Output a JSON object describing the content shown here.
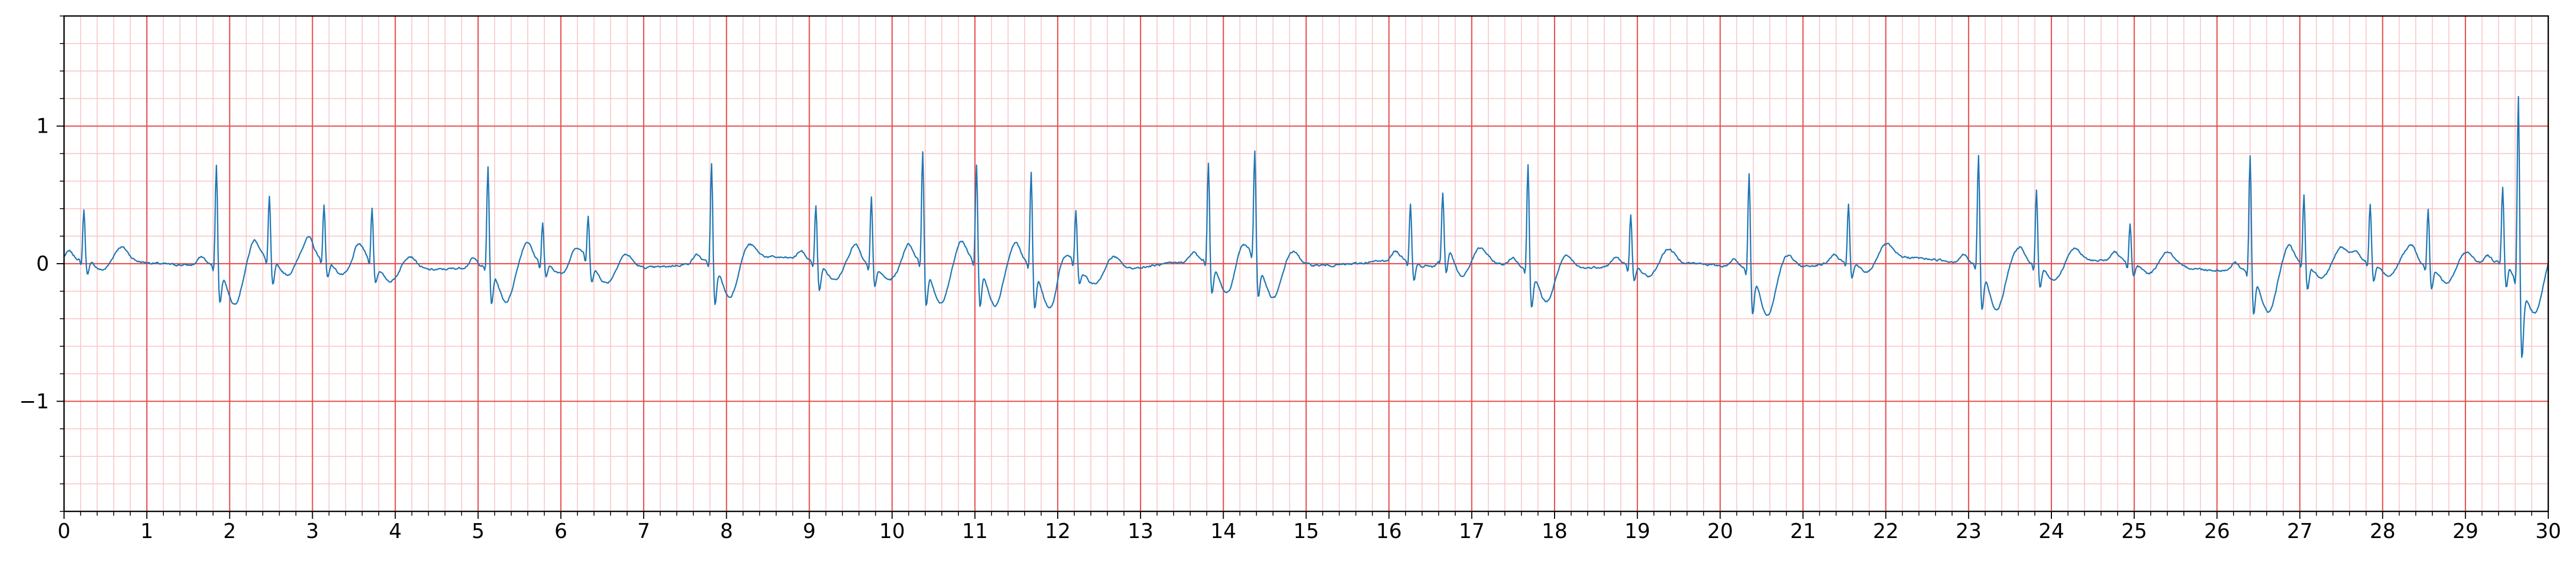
{
  "chart_data": {
    "type": "line",
    "title": "",
    "xlabel": "",
    "ylabel": "",
    "xlim": [
      0,
      30
    ],
    "ylim": [
      -1.8,
      1.8
    ],
    "x_ticks": [
      "0",
      "1",
      "2",
      "3",
      "4",
      "5",
      "6",
      "7",
      "8",
      "9",
      "10",
      "11",
      "12",
      "13",
      "14",
      "15",
      "16",
      "17",
      "18",
      "19",
      "20",
      "21",
      "22",
      "23",
      "24",
      "25",
      "26",
      "27",
      "28",
      "29",
      "30"
    ],
    "y_ticks": [
      "−1",
      "0",
      "1"
    ],
    "y_tick_values": [
      -1,
      0,
      1
    ],
    "grid": {
      "major": true,
      "minor": true,
      "major_x_step": 1,
      "minor_x_step": 0.2,
      "major_y_step": 1,
      "minor_y_step": 0.2
    },
    "colors": {
      "major_grid": "#e84a4a",
      "minor_grid": "#f8c3c3",
      "trace": "#1f77b4"
    },
    "series": [
      {
        "color": "#1f77b4",
        "beats": [
          {
            "t": 0.24,
            "r": 0.38,
            "s": -0.1,
            "st": -0.08
          },
          {
            "t": 1.84,
            "r": 0.77,
            "s": -0.25,
            "st": -0.3
          },
          {
            "t": 2.48,
            "r": 0.48,
            "s": -0.18,
            "st": -0.12
          },
          {
            "t": 3.14,
            "r": 0.42,
            "s": -0.12,
            "st": -0.1
          },
          {
            "t": 3.72,
            "r": 0.41,
            "s": -0.12,
            "st": -0.1
          },
          {
            "t": 5.12,
            "r": 0.77,
            "s": -0.26,
            "st": -0.28
          },
          {
            "t": 5.78,
            "r": 0.3,
            "s": -0.1,
            "st": -0.08
          },
          {
            "t": 6.33,
            "r": 0.33,
            "s": -0.12,
            "st": -0.12
          },
          {
            "t": 7.82,
            "r": 0.76,
            "s": -0.3,
            "st": -0.28
          },
          {
            "t": 9.08,
            "r": 0.44,
            "s": -0.2,
            "st": -0.12
          },
          {
            "t": 9.75,
            "r": 0.52,
            "s": -0.14,
            "st": -0.1
          },
          {
            "t": 10.37,
            "r": 0.86,
            "s": -0.28,
            "st": -0.3
          },
          {
            "t": 11.02,
            "r": 0.75,
            "s": -0.3,
            "st": -0.32
          },
          {
            "t": 11.68,
            "r": 0.72,
            "s": -0.28,
            "st": -0.3
          },
          {
            "t": 12.22,
            "r": 0.4,
            "s": -0.12,
            "st": -0.1
          },
          {
            "t": 13.82,
            "r": 0.75,
            "s": -0.22,
            "st": -0.24
          },
          {
            "t": 14.38,
            "r": 0.81,
            "s": -0.25,
            "st": -0.26
          },
          {
            "t": 16.26,
            "r": 0.43,
            "s": -0.15,
            "st": -0.12
          },
          {
            "t": 16.65,
            "r": 0.45,
            "s": -0.18,
            "st": -0.14
          },
          {
            "t": 17.68,
            "r": 0.8,
            "s": -0.26,
            "st": -0.24
          },
          {
            "t": 18.92,
            "r": 0.38,
            "s": -0.12,
            "st": -0.1
          },
          {
            "t": 20.35,
            "r": 0.75,
            "s": -0.3,
            "st": -0.34
          },
          {
            "t": 21.55,
            "r": 0.43,
            "s": -0.12,
            "st": -0.1
          },
          {
            "t": 23.12,
            "r": 0.85,
            "s": -0.3,
            "st": -0.32
          },
          {
            "t": 23.82,
            "r": 0.57,
            "s": -0.15,
            "st": -0.12
          },
          {
            "t": 24.95,
            "r": 0.3,
            "s": -0.1,
            "st": -0.08
          },
          {
            "t": 26.4,
            "r": 0.88,
            "s": -0.3,
            "st": -0.32
          },
          {
            "t": 27.05,
            "r": 0.53,
            "s": -0.18,
            "st": -0.12
          },
          {
            "t": 27.85,
            "r": 0.44,
            "s": -0.14,
            "st": -0.1
          },
          {
            "t": 28.55,
            "r": 0.44,
            "s": -0.16,
            "st": -0.12
          },
          {
            "t": 29.45,
            "r": 0.53,
            "s": -0.22,
            "st": -0.18
          },
          {
            "t": 29.64,
            "r": 1.45,
            "s": -0.5,
            "st": -0.45
          }
        ]
      }
    ]
  }
}
